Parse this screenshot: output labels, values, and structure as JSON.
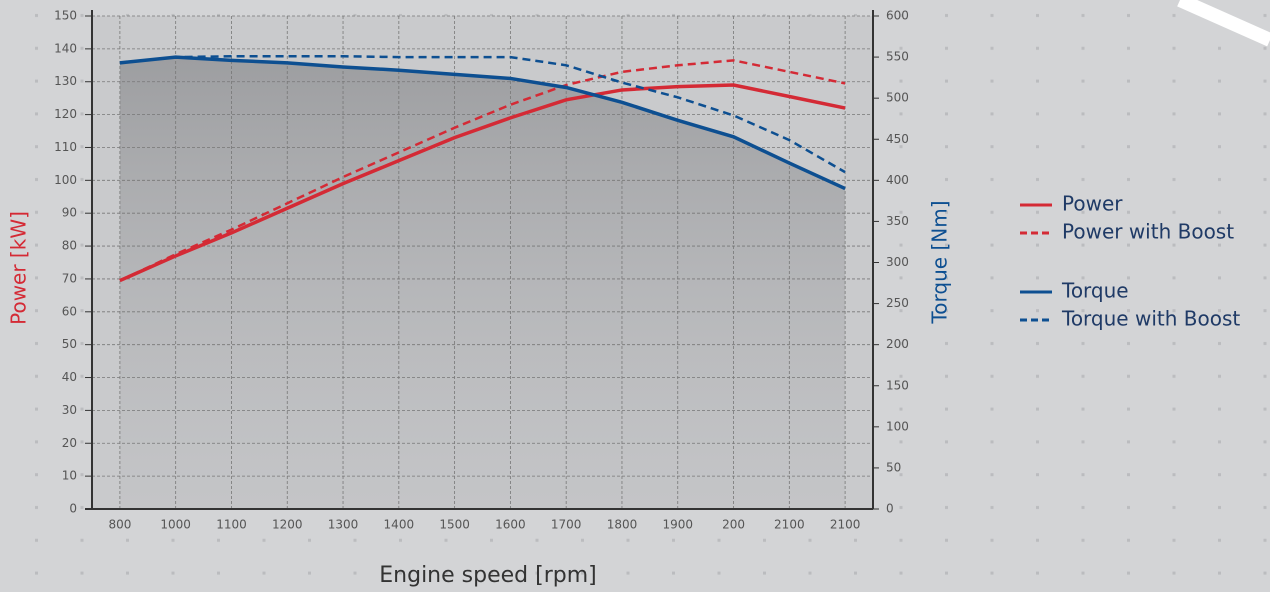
{
  "chart_data": {
    "type": "line",
    "x_label": "Engine speed [rpm]",
    "y_label": "Power [kW]",
    "y2_label": "Torque [Nm]",
    "categories": [
      "800",
      "1000",
      "1100",
      "1200",
      "1300",
      "1400",
      "1500",
      "1600",
      "1700",
      "1800",
      "1900",
      "200",
      "2100",
      "2100"
    ],
    "ylim": [
      0,
      150
    ],
    "yticks": [
      0,
      10,
      20,
      30,
      40,
      50,
      60,
      70,
      80,
      90,
      100,
      110,
      120,
      130,
      140,
      150
    ],
    "y2lim": [
      0,
      600
    ],
    "y2ticks": [
      0,
      50,
      100,
      150,
      200,
      250,
      300,
      350,
      400,
      450,
      500,
      550,
      600
    ],
    "grid": true,
    "legend": "right",
    "area_under": "Torque",
    "series": [
      {
        "name": "Power",
        "color": "#d42a35",
        "dash": "solid",
        "axis": "y",
        "values": [
          69.5,
          77,
          84,
          91.5,
          99,
          106,
          113,
          119,
          124.5,
          127.5,
          128.5,
          129,
          125.5,
          122
        ]
      },
      {
        "name": "Power with Boost",
        "color": "#d42a35",
        "dash": "dashed",
        "axis": "y",
        "values": [
          69.5,
          77.5,
          85,
          93,
          101,
          108.5,
          116,
          123,
          129,
          133,
          135,
          136.5,
          133,
          129.5
        ]
      },
      {
        "name": "Torque",
        "color": "#0d4f91",
        "dash": "solid",
        "axis": "y2",
        "values": [
          543,
          550,
          546,
          543,
          538,
          534,
          529,
          524,
          513,
          495,
          473,
          453,
          421,
          390
        ]
      },
      {
        "name": "Torque with Boost",
        "color": "#0d4f91",
        "dash": "dashed",
        "axis": "y2",
        "values": [
          543,
          550,
          551,
          551,
          551,
          550,
          550,
          550,
          540,
          519,
          501,
          479,
          449,
          410
        ]
      }
    ]
  }
}
